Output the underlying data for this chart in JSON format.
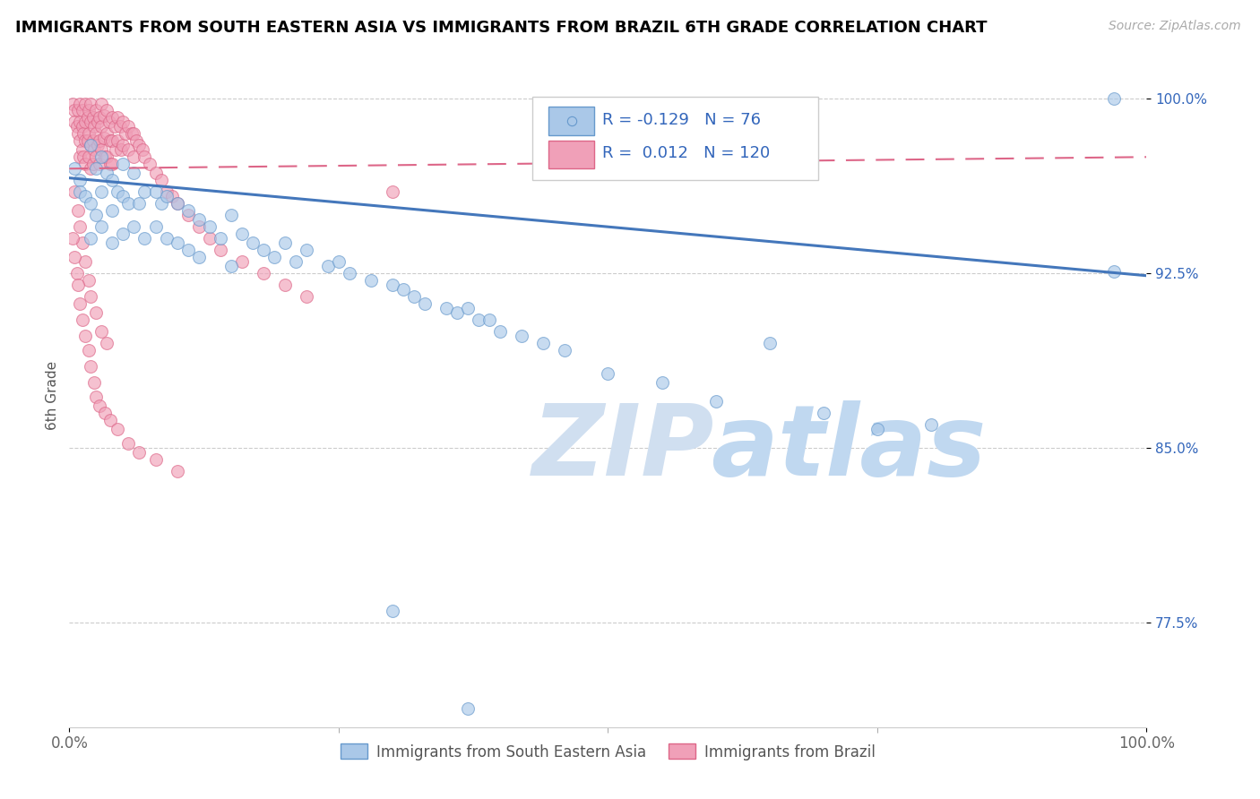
{
  "title": "IMMIGRANTS FROM SOUTH EASTERN ASIA VS IMMIGRANTS FROM BRAZIL 6TH GRADE CORRELATION CHART",
  "source_text": "Source: ZipAtlas.com",
  "ylabel": "6th Grade",
  "xlim": [
    0.0,
    1.0
  ],
  "ylim": [
    0.73,
    1.015
  ],
  "ytick_labels": [
    "77.5%",
    "85.0%",
    "92.5%",
    "100.0%"
  ],
  "ytick_values": [
    0.775,
    0.85,
    0.925,
    1.0
  ],
  "xtick_labels": [
    "0.0%",
    "100.0%"
  ],
  "xtick_values": [
    0.0,
    1.0
  ],
  "r_blue": -0.129,
  "n_blue": 76,
  "r_pink": 0.012,
  "n_pink": 120,
  "color_blue": "#aac8e8",
  "color_pink": "#f0a0b8",
  "edge_blue": "#6699cc",
  "edge_pink": "#dd6688",
  "trendline_blue": "#4477bb",
  "trendline_pink": "#dd6688",
  "text_color_blue": "#3366bb",
  "watermark_color": "#d0dff0",
  "watermark_color2": "#c0d8f0",
  "legend_label_blue": "Immigrants from South Eastern Asia",
  "legend_label_pink": "Immigrants from Brazil",
  "blue_scatter_x": [
    0.005,
    0.01,
    0.01,
    0.015,
    0.02,
    0.02,
    0.02,
    0.025,
    0.025,
    0.03,
    0.03,
    0.03,
    0.035,
    0.04,
    0.04,
    0.04,
    0.045,
    0.05,
    0.05,
    0.05,
    0.055,
    0.06,
    0.06,
    0.065,
    0.07,
    0.07,
    0.08,
    0.08,
    0.085,
    0.09,
    0.09,
    0.1,
    0.1,
    0.11,
    0.11,
    0.12,
    0.12,
    0.13,
    0.14,
    0.15,
    0.15,
    0.16,
    0.17,
    0.18,
    0.19,
    0.2,
    0.21,
    0.22,
    0.24,
    0.25,
    0.26,
    0.28,
    0.3,
    0.31,
    0.32,
    0.33,
    0.35,
    0.36,
    0.37,
    0.38,
    0.39,
    0.4,
    0.42,
    0.44,
    0.46,
    0.5,
    0.55,
    0.6,
    0.65,
    0.7,
    0.75,
    0.8,
    0.97,
    0.97,
    0.3,
    0.37
  ],
  "blue_scatter_y": [
    0.97,
    0.965,
    0.96,
    0.958,
    0.98,
    0.955,
    0.94,
    0.97,
    0.95,
    0.975,
    0.96,
    0.945,
    0.968,
    0.965,
    0.952,
    0.938,
    0.96,
    0.972,
    0.958,
    0.942,
    0.955,
    0.968,
    0.945,
    0.955,
    0.96,
    0.94,
    0.96,
    0.945,
    0.955,
    0.958,
    0.94,
    0.955,
    0.938,
    0.952,
    0.935,
    0.948,
    0.932,
    0.945,
    0.94,
    0.95,
    0.928,
    0.942,
    0.938,
    0.935,
    0.932,
    0.938,
    0.93,
    0.935,
    0.928,
    0.93,
    0.925,
    0.922,
    0.92,
    0.918,
    0.915,
    0.912,
    0.91,
    0.908,
    0.91,
    0.905,
    0.905,
    0.9,
    0.898,
    0.895,
    0.892,
    0.882,
    0.878,
    0.87,
    0.895,
    0.865,
    0.858,
    0.86,
    1.0,
    0.926,
    0.78,
    0.738
  ],
  "pink_scatter_x": [
    0.003,
    0.005,
    0.005,
    0.007,
    0.008,
    0.008,
    0.01,
    0.01,
    0.01,
    0.01,
    0.012,
    0.012,
    0.012,
    0.013,
    0.013,
    0.015,
    0.015,
    0.015,
    0.015,
    0.017,
    0.017,
    0.018,
    0.018,
    0.018,
    0.02,
    0.02,
    0.02,
    0.02,
    0.022,
    0.022,
    0.022,
    0.023,
    0.023,
    0.025,
    0.025,
    0.025,
    0.026,
    0.026,
    0.028,
    0.028,
    0.028,
    0.03,
    0.03,
    0.03,
    0.032,
    0.032,
    0.033,
    0.035,
    0.035,
    0.035,
    0.037,
    0.038,
    0.038,
    0.04,
    0.04,
    0.04,
    0.042,
    0.043,
    0.045,
    0.045,
    0.047,
    0.048,
    0.05,
    0.05,
    0.052,
    0.055,
    0.055,
    0.058,
    0.06,
    0.06,
    0.062,
    0.065,
    0.068,
    0.07,
    0.075,
    0.08,
    0.085,
    0.09,
    0.095,
    0.1,
    0.11,
    0.12,
    0.13,
    0.14,
    0.16,
    0.18,
    0.2,
    0.22,
    0.005,
    0.008,
    0.01,
    0.012,
    0.015,
    0.018,
    0.02,
    0.025,
    0.03,
    0.035,
    0.003,
    0.005,
    0.007,
    0.008,
    0.01,
    0.012,
    0.015,
    0.018,
    0.02,
    0.023,
    0.025,
    0.028,
    0.033,
    0.038,
    0.045,
    0.055,
    0.065,
    0.08,
    0.1,
    0.3
  ],
  "pink_scatter_y": [
    0.998,
    0.995,
    0.99,
    0.988,
    0.995,
    0.985,
    0.998,
    0.99,
    0.982,
    0.975,
    0.995,
    0.988,
    0.978,
    0.985,
    0.975,
    0.998,
    0.99,
    0.982,
    0.972,
    0.992,
    0.982,
    0.995,
    0.985,
    0.975,
    0.998,
    0.99,
    0.98,
    0.97,
    0.992,
    0.982,
    0.972,
    0.988,
    0.978,
    0.995,
    0.985,
    0.975,
    0.99,
    0.98,
    0.992,
    0.982,
    0.972,
    0.998,
    0.988,
    0.978,
    0.993,
    0.983,
    0.975,
    0.995,
    0.985,
    0.975,
    0.99,
    0.982,
    0.972,
    0.992,
    0.982,
    0.972,
    0.988,
    0.978,
    0.992,
    0.982,
    0.988,
    0.978,
    0.99,
    0.98,
    0.985,
    0.988,
    0.978,
    0.985,
    0.985,
    0.975,
    0.982,
    0.98,
    0.978,
    0.975,
    0.972,
    0.968,
    0.965,
    0.96,
    0.958,
    0.955,
    0.95,
    0.945,
    0.94,
    0.935,
    0.93,
    0.925,
    0.92,
    0.915,
    0.96,
    0.952,
    0.945,
    0.938,
    0.93,
    0.922,
    0.915,
    0.908,
    0.9,
    0.895,
    0.94,
    0.932,
    0.925,
    0.92,
    0.912,
    0.905,
    0.898,
    0.892,
    0.885,
    0.878,
    0.872,
    0.868,
    0.865,
    0.862,
    0.858,
    0.852,
    0.848,
    0.845,
    0.84,
    0.96
  ]
}
